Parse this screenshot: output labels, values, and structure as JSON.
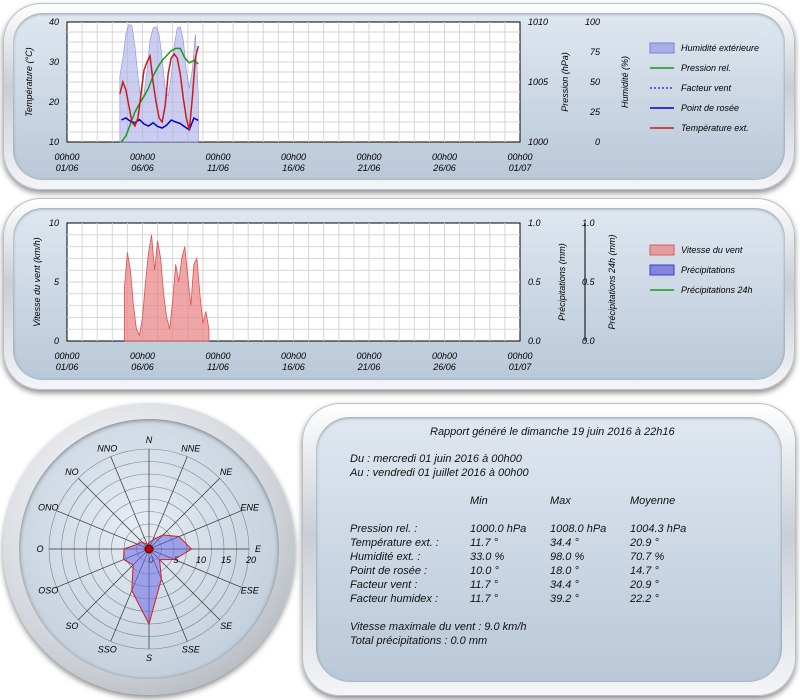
{
  "chart_data": [
    {
      "type": "line",
      "x_ticks": [
        [
          "00h00",
          "01/06"
        ],
        [
          "00h00",
          "06/06"
        ],
        [
          "00h00",
          "11/06"
        ],
        [
          "00h00",
          "16/06"
        ],
        [
          "00h00",
          "21/06"
        ],
        [
          "00h00",
          "26/06"
        ],
        [
          "00h00",
          "01/07"
        ]
      ],
      "ylabel": "Température (°C)",
      "y2label": "Pression (hPa)",
      "y3label": "Humidité (%)",
      "ylim": [
        10,
        40
      ],
      "y_ticks": [
        "10",
        "20",
        "30",
        "40"
      ],
      "y2lim": [
        1000,
        1010
      ],
      "y2_ticks": [
        "1000",
        "1005",
        "1010"
      ],
      "y3lim": [
        0,
        100
      ],
      "y3_ticks": [
        "0",
        "25",
        "50",
        "75",
        "100"
      ],
      "legend": [
        "Humidité extérieure",
        "Pression rel.",
        "Facteur vent",
        "Point de rosée",
        "Température ext."
      ],
      "colors": {
        "humidity": "#a8aee8",
        "pressure": "#1a9a1a",
        "windchill": "#1a1acc",
        "dewpoint": "#0000cc",
        "temperature": "#cc1a1a"
      },
      "series": [
        {
          "name": "Humidité extérieure",
          "axis": "y3",
          "x": [
            3.5,
            3.7,
            3.9,
            4.1,
            4.3,
            4.5,
            4.7,
            4.9,
            5.1,
            5.3,
            5.5,
            5.7,
            5.9,
            6.1,
            6.3,
            6.5,
            6.7,
            6.9,
            7.1,
            7.3,
            7.5,
            7.7,
            7.9,
            8.1,
            8.3,
            8.5,
            8.7
          ],
          "values": [
            55,
            70,
            90,
            98,
            97,
            80,
            55,
            35,
            40,
            60,
            85,
            95,
            96,
            90,
            70,
            45,
            38,
            55,
            80,
            95,
            96,
            85,
            60,
            45,
            60,
            90,
            40
          ]
        },
        {
          "name": "Pression rel.",
          "axis": "y2",
          "x": [
            3.6,
            3.9,
            4.2,
            4.5,
            4.8,
            5.1,
            5.4,
            5.7,
            6.0,
            6.3,
            6.6,
            6.9,
            7.2,
            7.5,
            7.8,
            8.1,
            8.4,
            8.7
          ],
          "values": [
            1000.0,
            1000.5,
            1001.5,
            1002.5,
            1003.2,
            1003.8,
            1004.5,
            1005.5,
            1006.2,
            1006.8,
            1007.2,
            1007.6,
            1007.8,
            1007.8,
            1007.0,
            1006.6,
            1006.8,
            1006.5
          ]
        },
        {
          "name": "Point de rosée",
          "axis": "y",
          "x": [
            3.6,
            3.9,
            4.2,
            4.5,
            4.8,
            5.1,
            5.4,
            5.7,
            6.0,
            6.3,
            6.6,
            6.9,
            7.2,
            7.5,
            7.8,
            8.1,
            8.4,
            8.7
          ],
          "values": [
            15.5,
            16.0,
            15.2,
            14.8,
            15.6,
            14.5,
            14.0,
            14.8,
            13.9,
            13.5,
            14.2,
            15.5,
            15.0,
            14.6,
            13.8,
            13.0,
            16.0,
            15.4
          ]
        },
        {
          "name": "Température ext.",
          "axis": "y",
          "x": [
            3.5,
            3.7,
            3.9,
            4.1,
            4.3,
            4.5,
            4.7,
            4.9,
            5.1,
            5.3,
            5.5,
            5.7,
            5.9,
            6.1,
            6.3,
            6.5,
            6.7,
            6.9,
            7.1,
            7.3,
            7.5,
            7.7,
            7.9,
            8.1,
            8.3,
            8.5,
            8.7
          ],
          "values": [
            22.0,
            25.0,
            23.0,
            19.0,
            15.0,
            14.0,
            16.0,
            22.0,
            28.0,
            30.0,
            31.5,
            25.0,
            20.0,
            16.0,
            15.0,
            19.0,
            27.0,
            31.0,
            32.0,
            31.0,
            27.0,
            21.0,
            16.0,
            13.0,
            21.0,
            31.0,
            34.0
          ]
        }
      ]
    },
    {
      "type": "area",
      "x_ticks": [
        [
          "00h00",
          "01/06"
        ],
        [
          "00h00",
          "06/06"
        ],
        [
          "00h00",
          "11/06"
        ],
        [
          "00h00",
          "16/06"
        ],
        [
          "00h00",
          "21/06"
        ],
        [
          "00h00",
          "26/06"
        ],
        [
          "00h00",
          "01/07"
        ]
      ],
      "ylabel": "Vitesse du vent (km/h)",
      "y2label": "Précipitations (mm)",
      "y3label": "Précipitations 24h (mm)",
      "ylim": [
        0,
        10
      ],
      "y_ticks": [
        "0",
        "5",
        "10"
      ],
      "y2lim": [
        0,
        1
      ],
      "y2_ticks": [
        "0.0",
        "0.5",
        "1.0"
      ],
      "y3_ticks": [
        "0.0",
        "0.5",
        "1.0"
      ],
      "legend": [
        "Vitesse du vent",
        "Précipitations",
        "Précipitations 24h"
      ],
      "colors": {
        "wind": "#e88080",
        "rain": "#6060e0",
        "rain24": "#1a9a1a"
      },
      "series": [
        {
          "name": "Vitesse du vent",
          "x": [
            3.8,
            4.0,
            4.2,
            4.4,
            4.6,
            4.8,
            5.0,
            5.2,
            5.4,
            5.6,
            5.8,
            6.0,
            6.2,
            6.4,
            6.6,
            6.8,
            7.0,
            7.2,
            7.4,
            7.6,
            7.8,
            8.0,
            8.2,
            8.4,
            8.6,
            8.8,
            9.0,
            9.2,
            9.4
          ],
          "values": [
            4.5,
            7.5,
            6.0,
            3.0,
            1.0,
            0.5,
            2.0,
            5.0,
            7.5,
            9.0,
            6.0,
            8.5,
            7.0,
            4.0,
            2.0,
            1.0,
            3.5,
            6.5,
            5.0,
            7.0,
            8.0,
            5.5,
            3.0,
            6.5,
            7.0,
            4.0,
            1.5,
            2.5,
            1.0
          ]
        },
        {
          "name": "Précipitations",
          "x": [],
          "values": []
        },
        {
          "name": "Précipitations 24h",
          "x": [],
          "values": []
        }
      ]
    },
    {
      "type": "polar",
      "directions": [
        "N",
        "NNE",
        "NE",
        "ENE",
        "E",
        "ESE",
        "SE",
        "SSE",
        "S",
        "SSO",
        "SO",
        "OSO",
        "O",
        "ONO",
        "NO",
        "NNO"
      ],
      "radial_ticks": [
        "0",
        "5",
        "10",
        "15",
        "20"
      ],
      "rmax": 20,
      "values": [
        1.2,
        2.0,
        4.0,
        6.5,
        8.5,
        5.5,
        3.0,
        6.5,
        15.0,
        9.0,
        4.5,
        5.5,
        5.0,
        2.5,
        2.0,
        1.0
      ]
    }
  ],
  "report": {
    "title": "Rapport généré le dimanche 19 juin 2016 à 22h16",
    "from": "Du : mercredi 01 juin 2016 à 00h00",
    "to": "Au : vendredi 01 juillet 2016 à 00h00",
    "headers": [
      "Min",
      "Max",
      "Moyenne"
    ],
    "rows": [
      {
        "label": "Pression rel. :",
        "min": "1000.0 hPa",
        "max": "1008.0 hPa",
        "avg": "1004.3 hPa"
      },
      {
        "label": "Température ext. :",
        "min": "11.7 °",
        "max": "34.4 °",
        "avg": "20.9 °"
      },
      {
        "label": "Humidité ext. :",
        "min": "33.0 %",
        "max": "98.0 %",
        "avg": "70.7 %"
      },
      {
        "label": "Point de rosée :",
        "min": "10.0 °",
        "max": "18.0 °",
        "avg": "14.7 °"
      },
      {
        "label": "Facteur vent :",
        "min": "11.7 °",
        "max": "34.4 °",
        "avg": "20.9 °"
      },
      {
        "label": "Facteur humidex :",
        "min": "11.7 °",
        "max": "39.2 °",
        "avg": "22.2 °"
      }
    ],
    "max_wind": "Vitesse maximale du vent : 9.0 km/h",
    "total_rain": "Total précipitations : 0.0 mm"
  }
}
